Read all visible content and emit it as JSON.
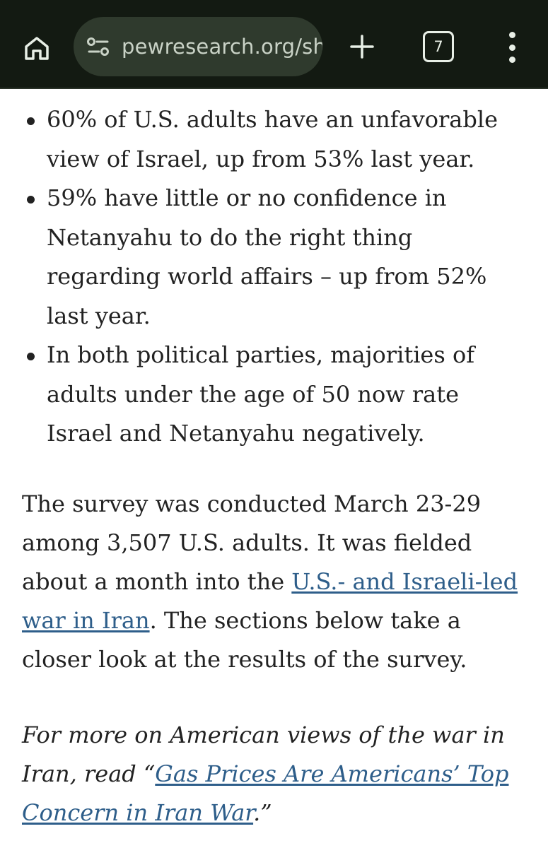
{
  "browser": {
    "url": "pewresearch.org/sho",
    "tab_count": "7",
    "icons": {
      "home": "home-icon",
      "site_settings": "tune-icon",
      "new_tab": "plus-icon",
      "tabs": "tab-switcher-icon",
      "menu": "more-vert-icon"
    }
  },
  "article": {
    "bullets": [
      "60% of U.S. adults have an unfavorable view of Israel, up from 53% last year.",
      "59% have little or no confidence in Netanyahu to do the right thing regarding world affairs – up from 52% last year.",
      "In both political parties, majorities of adults under the age of 50 now rate Israel and Netanyahu negatively."
    ],
    "survey_paragraph": {
      "before_link": "The survey was conducted March 23-29 among 3,507 U.S. adults. It was fielded about a month into the ",
      "link_text": "U.S.- and Israeli-led war in Iran",
      "after_link": ". The sections below take a closer look at the results of the survey."
    },
    "more_paragraph": {
      "before_link": "For more on American views of the war in Iran, read “",
      "link_text": "Gas Prices Are Americans’ Top Concern in Iran War",
      "after_link": ".”"
    }
  },
  "colors": {
    "toolbar_bg": "#131a12",
    "omnibox_bg": "#2f3a2d",
    "link": "#2e5e8a",
    "text": "#222222"
  }
}
